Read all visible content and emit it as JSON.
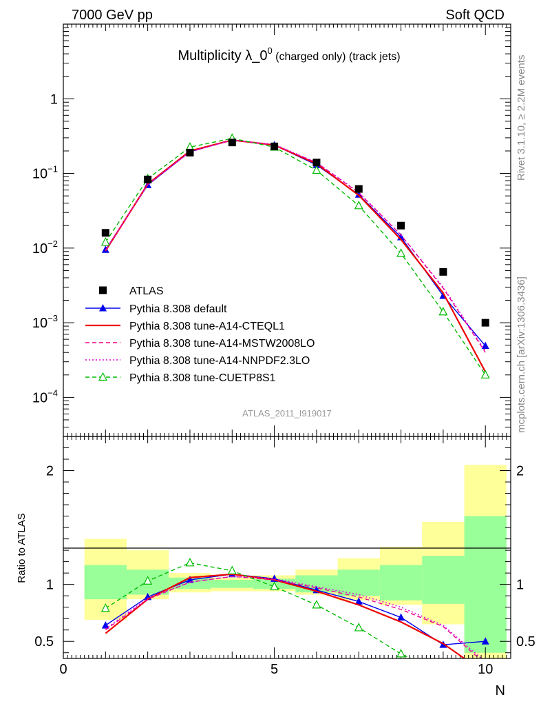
{
  "header": {
    "left": "7000 GeV pp",
    "right": "Soft QCD"
  },
  "side_labels": {
    "top": "Rivet 3.1.10, ≥ 2.2M events",
    "bottom": "mcplots.cern.ch [arXiv:1306.3436]"
  },
  "chart_data": {
    "type": "scatter",
    "title": "Multiplicity λ_0⁰ (charged only) (track jets)",
    "title_parts": {
      "main": "Multiplicity λ_0",
      "sup": "0",
      "extra": " (charged only) (track jets)"
    },
    "watermark": "ATLAS_2011_I919017",
    "xlabel": "N",
    "ylabel_ratio": "Ratio to ATLAS",
    "xlim": [
      0,
      10.6
    ],
    "ylim_main": [
      3e-05,
      10
    ],
    "yscale_main": "log",
    "ylim_ratio": [
      0.35,
      2.3
    ],
    "x_ticks": [
      "0",
      "5",
      "10"
    ],
    "y_ticks_main": [
      {
        "mant": "1",
        "exp": ""
      },
      {
        "mant": "10",
        "exp": "−1"
      },
      {
        "mant": "10",
        "exp": "−2"
      },
      {
        "mant": "10",
        "exp": "−3"
      },
      {
        "mant": "10",
        "exp": "−4"
      }
    ],
    "y_ticks_ratio": [
      "2",
      "1",
      "0.5"
    ],
    "legend_position": "lower-left",
    "x": [
      1,
      2,
      3,
      4,
      5,
      6,
      7,
      8,
      9,
      10
    ],
    "data": {
      "name": "ATLAS",
      "values": [
        0.016,
        0.083,
        0.19,
        0.26,
        0.23,
        0.14,
        0.062,
        0.02,
        0.0048,
        0.001
      ],
      "band_inner": [
        [
          0.87,
          1.17
        ],
        [
          0.91,
          1.13
        ],
        [
          0.96,
          1.06
        ],
        [
          0.97,
          1.04
        ],
        [
          0.96,
          1.05
        ],
        [
          0.93,
          1.08
        ],
        [
          0.9,
          1.13
        ],
        [
          0.86,
          1.17
        ],
        [
          0.83,
          1.25
        ],
        [
          0.4,
          1.6
        ]
      ],
      "band_outer": [
        [
          0.69,
          1.4
        ],
        [
          0.87,
          1.3
        ],
        [
          0.93,
          1.1
        ],
        [
          0.94,
          1.06
        ],
        [
          0.94,
          1.08
        ],
        [
          0.91,
          1.13
        ],
        [
          0.86,
          1.23
        ],
        [
          0.82,
          1.33
        ],
        [
          0.65,
          1.55
        ],
        [
          0.35,
          2.05
        ]
      ]
    },
    "series": [
      {
        "name": "Pythia 8.308 default",
        "color": "#0000ee",
        "style": "solid",
        "marker": "triangle-filled",
        "values": [
          0.0095,
          0.07,
          0.195,
          0.28,
          0.24,
          0.13,
          0.052,
          0.014,
          0.0023,
          0.00049
        ],
        "ratio": [
          0.64,
          0.89,
          1.04,
          1.09,
          1.05,
          0.95,
          0.85,
          0.71,
          0.47,
          0.5
        ]
      },
      {
        "name": "Pythia 8.308 tune-A14-CTEQL1",
        "color": "#ee0000",
        "style": "solid",
        "marker": "none",
        "values": [
          0.0092,
          0.072,
          0.2,
          0.28,
          0.24,
          0.135,
          0.051,
          0.013,
          0.0025,
          0.00022
        ],
        "ratio": [
          0.57,
          0.87,
          1.06,
          1.09,
          1.04,
          0.94,
          0.82,
          0.67,
          0.48,
          0.22
        ]
      },
      {
        "name": "Pythia 8.308 tune-A14-MSTW2008LO",
        "color": "#ee0088",
        "style": "dashed",
        "marker": "none",
        "values": [
          0.0093,
          0.071,
          0.195,
          0.28,
          0.24,
          0.14,
          0.055,
          0.015,
          0.0029,
          0.0004
        ],
        "ratio": [
          0.6,
          0.87,
          1.02,
          1.07,
          1.04,
          0.97,
          0.89,
          0.78,
          0.63,
          0.3
        ]
      },
      {
        "name": "Pythia 8.308 tune-A14-NNPDF2.3LO",
        "color": "#dd00dd",
        "style": "dotted",
        "marker": "none",
        "values": [
          0.0094,
          0.071,
          0.195,
          0.28,
          0.245,
          0.14,
          0.056,
          0.015,
          0.003,
          0.00042
        ],
        "ratio": [
          0.61,
          0.88,
          1.02,
          1.07,
          1.05,
          0.98,
          0.91,
          0.8,
          0.64,
          0.32
        ]
      },
      {
        "name": "Pythia 8.308 tune-CUETP8S1",
        "color": "#00bb00",
        "style": "dashed",
        "marker": "triangle-open",
        "values": [
          0.012,
          0.085,
          0.225,
          0.295,
          0.225,
          0.11,
          0.037,
          0.0085,
          0.0014,
          0.0002
        ],
        "ratio": [
          0.79,
          1.03,
          1.19,
          1.12,
          0.98,
          0.82,
          0.62,
          0.39,
          0.22,
          0.2
        ]
      }
    ]
  }
}
